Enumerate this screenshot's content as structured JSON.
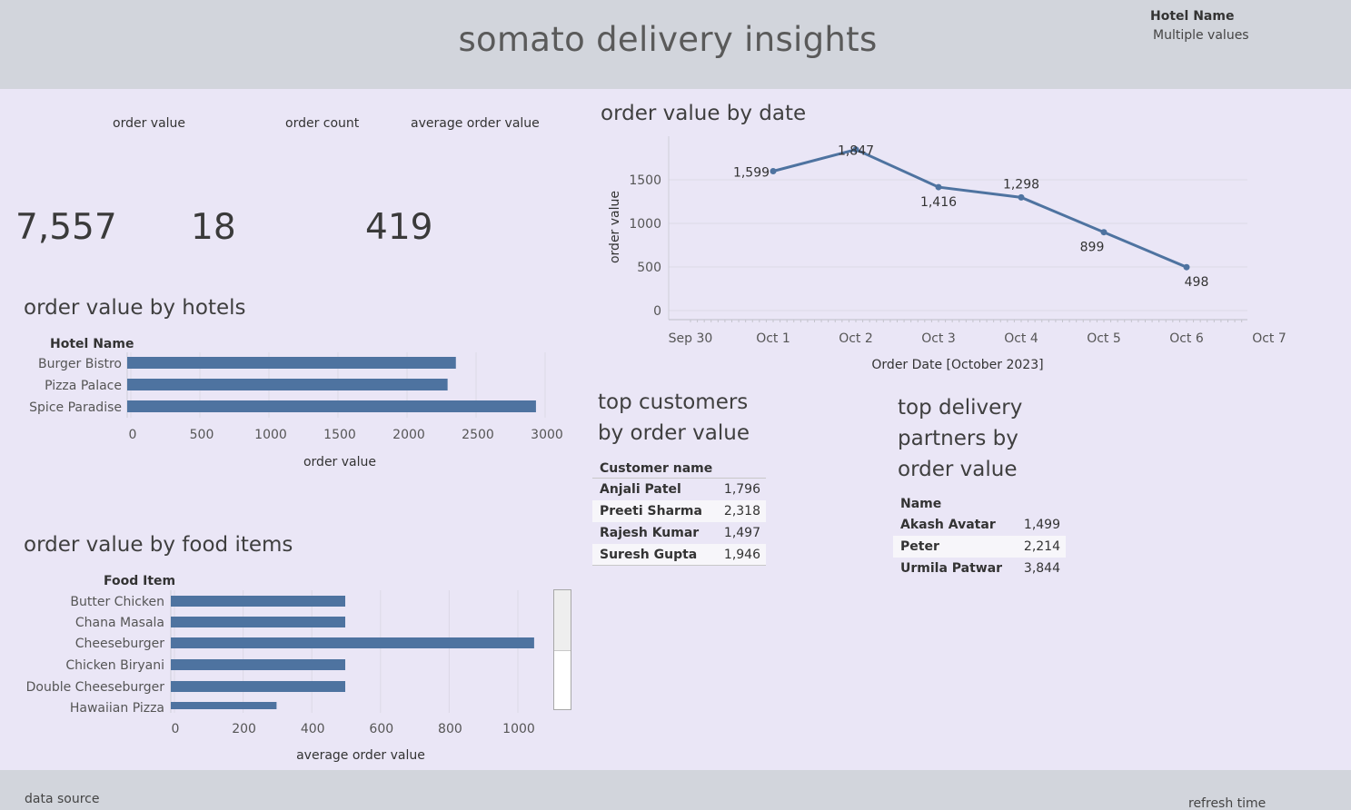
{
  "header": {
    "title": "somato delivery insights",
    "filter_label": "Hotel Name",
    "filter_value": "Multiple values"
  },
  "kpis": {
    "order_value_label": "order value",
    "order_value": "7,557",
    "order_count_label": "order count",
    "order_count": "18",
    "avg_label": "average order value",
    "avg_value": "419"
  },
  "sections": {
    "by_date": "order value by date",
    "by_hotels": "order value by hotels",
    "by_food": "order value by food items",
    "top_customers_line1": "top customers",
    "top_customers_line2": "by order value",
    "top_partners_line1": "top delivery",
    "top_partners_line2": "partners by",
    "top_partners_line3": "order value"
  },
  "customers": {
    "header": "Customer name",
    "rows": [
      {
        "name": "Anjali Patel",
        "value": "1,796"
      },
      {
        "name": "Preeti Sharma",
        "value": "2,318"
      },
      {
        "name": "Rajesh Kumar",
        "value": "1,497"
      },
      {
        "name": "Suresh Gupta",
        "value": "1,946"
      }
    ]
  },
  "partners": {
    "header": "Name",
    "rows": [
      {
        "name": "Akash Avatar",
        "value": "1,499"
      },
      {
        "name": "Peter",
        "value": "2,214"
      },
      {
        "name": "Urmila Patwar",
        "value": "3,844"
      }
    ]
  },
  "footer": {
    "left": "data source",
    "right": "refresh time"
  },
  "colors": {
    "bar": "#4e73a0",
    "line": "#4e73a0",
    "background": "#eae6f6",
    "header_bg": "#d2d5dc"
  },
  "chart_data": [
    {
      "id": "line_by_date",
      "type": "line",
      "xlabel": "Order Date [October 2023]",
      "ylabel": "order value",
      "x_ticks": [
        "Sep 30",
        "Oct 1",
        "Oct 2",
        "Oct 3",
        "Oct 4",
        "Oct 5",
        "Oct 6",
        "Oct 7"
      ],
      "y_ticks": [
        0,
        500,
        1000,
        1500
      ],
      "ylim": [
        0,
        1950
      ],
      "x": [
        "Oct 1",
        "Oct 2",
        "Oct 3",
        "Oct 4",
        "Oct 5",
        "Oct 6"
      ],
      "values": [
        1599,
        1847,
        1416,
        1298,
        899,
        498
      ],
      "labels": [
        "1,599",
        "1,847",
        "1,416",
        "1,298",
        "899",
        "498"
      ],
      "grid": true
    },
    {
      "id": "bar_by_hotels",
      "type": "bar",
      "orientation": "horizontal",
      "category_header": "Hotel Name",
      "categories": [
        "Burger Bistro",
        "Pizza Palace",
        "Spice Paradise"
      ],
      "values": [
        2380,
        2320,
        2960
      ],
      "xlabel": "order value",
      "x_ticks": [
        0,
        500,
        1000,
        1500,
        2000,
        2500,
        3000
      ],
      "xlim": [
        0,
        3000
      ]
    },
    {
      "id": "bar_by_food",
      "type": "bar",
      "orientation": "horizontal",
      "category_header": "Food Item",
      "categories": [
        "Butter Chicken",
        "Chana Masala",
        "Cheeseburger",
        "Chicken Biryani",
        "Double Cheeseburger",
        "Hawaiian Pizza"
      ],
      "values": [
        500,
        500,
        1050,
        500,
        500,
        300
      ],
      "xlabel": "average order value",
      "x_ticks": [
        0,
        200,
        400,
        600,
        800,
        1000
      ],
      "xlim": [
        0,
        1000
      ]
    }
  ]
}
